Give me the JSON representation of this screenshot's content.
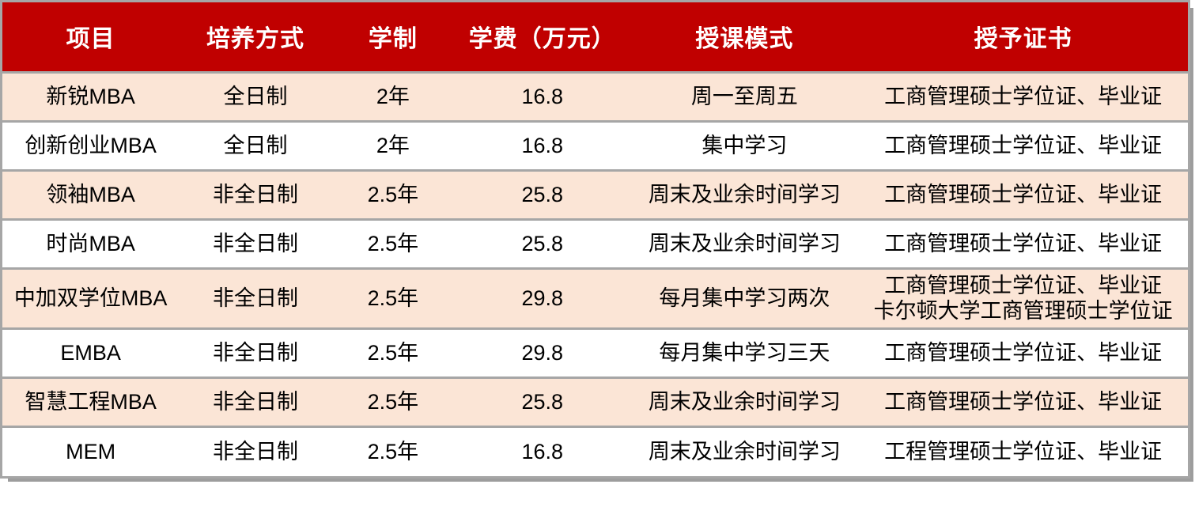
{
  "table": {
    "columns": [
      {
        "key": "program",
        "label": "项目"
      },
      {
        "key": "mode",
        "label": "培养方式"
      },
      {
        "key": "duration",
        "label": "学制"
      },
      {
        "key": "tuition",
        "label": "学费（万元）"
      },
      {
        "key": "schedule",
        "label": "授课模式"
      },
      {
        "key": "certificate",
        "label": "授予证书"
      }
    ],
    "rows": [
      {
        "program": "新锐MBA",
        "mode": "全日制",
        "duration": "2年",
        "tuition": "16.8",
        "schedule": "周一至周五",
        "certificate": [
          "工商管理硕士学位证、毕业证"
        ]
      },
      {
        "program": "创新创业MBA",
        "mode": "全日制",
        "duration": "2年",
        "tuition": "16.8",
        "schedule": "集中学习",
        "certificate": [
          "工商管理硕士学位证、毕业证"
        ]
      },
      {
        "program": "领袖MBA",
        "mode": "非全日制",
        "duration": "2.5年",
        "tuition": "25.8",
        "schedule": "周末及业余时间学习",
        "certificate": [
          "工商管理硕士学位证、毕业证"
        ]
      },
      {
        "program": "时尚MBA",
        "mode": "非全日制",
        "duration": "2.5年",
        "tuition": "25.8",
        "schedule": "周末及业余时间学习",
        "certificate": [
          "工商管理硕士学位证、毕业证"
        ]
      },
      {
        "program": "中加双学位MBA",
        "mode": "非全日制",
        "duration": "2.5年",
        "tuition": "29.8",
        "schedule": "每月集中学习两次",
        "certificate": [
          "工商管理硕士学位证、毕业证",
          "卡尔顿大学工商管理硕士学位证"
        ]
      },
      {
        "program": "EMBA",
        "mode": "非全日制",
        "duration": "2.5年",
        "tuition": "29.8",
        "schedule": "每月集中学习三天",
        "certificate": [
          "工商管理硕士学位证、毕业证"
        ]
      },
      {
        "program": "智慧工程MBA",
        "mode": "非全日制",
        "duration": "2.5年",
        "tuition": "25.8",
        "schedule": "周末及业余时间学习",
        "certificate": [
          "工商管理硕士学位证、毕业证"
        ]
      },
      {
        "program": "MEM",
        "mode": "非全日制",
        "duration": "2.5年",
        "tuition": "16.8",
        "schedule": "周末及业余时间学习",
        "certificate": [
          "工程管理硕士学位证、毕业证"
        ]
      }
    ],
    "colors": {
      "header_bg": "#C00000",
      "header_text": "#FFFFFF",
      "row_alt_bg": "#FBE5D6",
      "row_bg": "#FFFFFF",
      "border": "#A6A6A6",
      "body_text": "#000000"
    }
  }
}
